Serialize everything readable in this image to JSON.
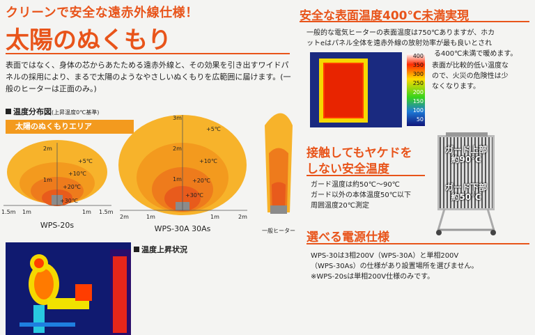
{
  "header": {
    "subtitle": "クリーンで安全な遠赤外線仕様！",
    "title": "太陽のぬくもり"
  },
  "intro": "表面ではなく、身体の芯からあたためる遠赤外線と、その効果を引き出すワイドパネルの採用により、まるで太陽のようなやさしいぬくもりを広範囲に届けます。(一般のヒーターは正面のみ。)",
  "distribution": {
    "label": "温度分布図",
    "note": "(上昇温度0℃基準)",
    "area_label": "太陽のぬくもりエリア",
    "wps20": {
      "temps": [
        "+5℃",
        "+10℃",
        "+20℃",
        "+30℃"
      ],
      "y_ticks": [
        "2m",
        "1m"
      ],
      "x_ticks": [
        "1.5m",
        "1m",
        "1m",
        "1.5m"
      ],
      "model": "WPS-20s"
    },
    "wps30": {
      "temps": [
        "+5℃",
        "+10℃",
        "+20℃",
        "+30℃"
      ],
      "y_ticks": [
        "3m",
        "2m",
        "1m"
      ],
      "x_ticks": [
        "2m",
        "1m",
        "1m",
        "2m"
      ],
      "model": "WPS-30A 30As"
    },
    "general": {
      "model": "一般ヒーター"
    }
  },
  "rise": {
    "label": "温度上昇状況"
  },
  "surface": {
    "heading": "安全な表面温度400℃未満実現",
    "lines": [
      "一般的な電気ヒーターの表面温度は750℃ありますが、ホカ",
      "ットeはパネル全体を遠赤外線の放射効率が最も良いとされ",
      "る400℃未満で暖めます。",
      "表面が比較的低い温度な",
      "ので、火災の危険性は少",
      "なくなります。"
    ],
    "scale": [
      "400",
      "350",
      "300",
      "250",
      "200",
      "150",
      "100",
      "50"
    ]
  },
  "safety": {
    "heading1": "接触してもヤケドを",
    "heading2": "しない安全温度",
    "lines": [
      "ガード温度は約50℃～90℃",
      "ガード以外の本体温度50℃以下",
      "周囲温度20℃測定"
    ],
    "guard_upper1": "ガード上部",
    "guard_upper2": "約90℃",
    "guard_lower1": "ガード下部",
    "guard_lower2": "約50℃"
  },
  "power": {
    "heading": "選べる電源仕様",
    "lines": [
      "WPS-30は3相200V（WPS-30A）と単相200V",
      "（WPS-30As）の仕様があり設置場所を選びません。",
      "※WPS-20sは単相200V仕様のみです。"
    ]
  }
}
